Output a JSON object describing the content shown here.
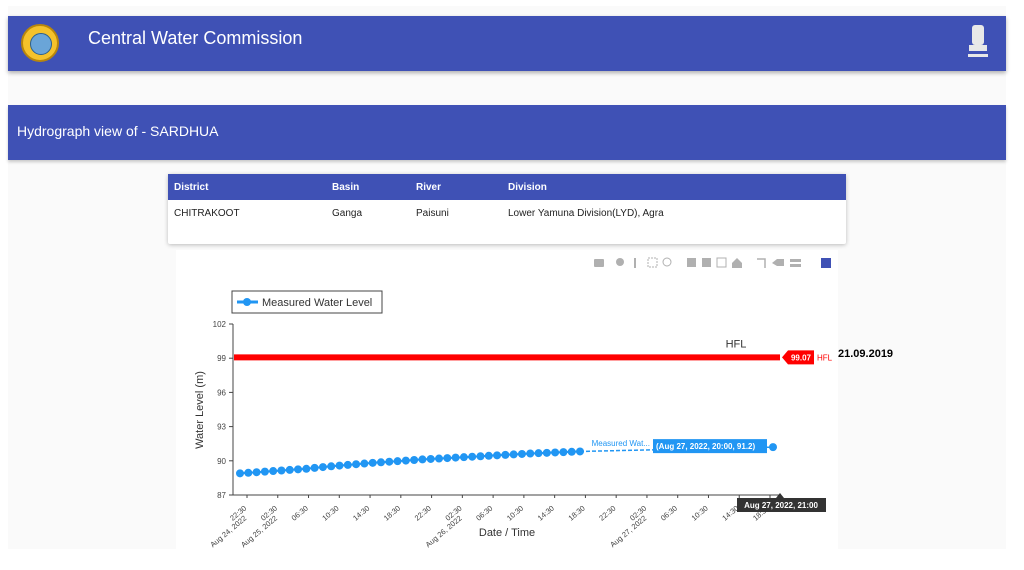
{
  "header": {
    "title": "Central Water Commission"
  },
  "banner": {
    "text": "Hydrograph view of - SARDHUA"
  },
  "station_table": {
    "headers": [
      "District",
      "Basin",
      "River",
      "Division"
    ],
    "row": [
      "CHITRAKOOT",
      "Ganga",
      "Paisuni",
      "Lower Yamuna Division(LYD), Agra"
    ]
  },
  "colors": {
    "primary": "#3f51b5",
    "hfl": "#ff0000",
    "series": "#2196f3"
  },
  "modebar_icons": [
    "camera-icon",
    "zoom-icon",
    "pan-icon",
    "box-select-icon",
    "lasso-icon",
    "zoom-in-icon",
    "zoom-out-icon",
    "autoscale-icon",
    "reset-axes-icon",
    "spike-lines-icon",
    "hover-closest-icon",
    "hover-compare-icon",
    "plotly-logo-icon"
  ],
  "hfl_date": "21.09.2019",
  "chart_data": {
    "type": "line",
    "legend": {
      "position": "top-left",
      "entries": [
        "Measured Water Level"
      ]
    },
    "xlabel": "Date / Time",
    "ylabel": "Water Level (m)",
    "ylim": [
      87,
      102
    ],
    "y_ticks": [
      87,
      90,
      93,
      96,
      99,
      102
    ],
    "x_tick_labels": [
      "22:30\nAug 24, 2022",
      "02:30\nAug 25, 2022",
      "06:30",
      "10:30",
      "14:30",
      "18:30",
      "22:30",
      "02:30\nAug 26, 2022",
      "06:30",
      "10:30",
      "14:30",
      "18:30",
      "22:30",
      "02:30\nAug 27, 2022",
      "06:30",
      "10:30",
      "14:30",
      "18:30"
    ],
    "series": [
      {
        "name": "Measured Water Level",
        "values": [
          88.9,
          88.95,
          89.0,
          89.05,
          89.1,
          89.15,
          89.2,
          89.25,
          89.3,
          89.38,
          89.45,
          89.52,
          89.58,
          89.64,
          89.7,
          89.76,
          89.82,
          89.87,
          89.92,
          89.97,
          90.02,
          90.07,
          90.12,
          90.16,
          90.2,
          90.24,
          90.28,
          90.32,
          90.36,
          90.4,
          90.44,
          90.48,
          90.52,
          90.56,
          90.6,
          90.64,
          90.67,
          90.7,
          90.73,
          90.76,
          90.79,
          90.82,
          91.2
        ]
      },
      {
        "name": "HFL",
        "value": 99.07
      }
    ],
    "annotations": {
      "hfl_label": "HFL",
      "hfl_value_label": "99.07",
      "hfl_tag": "HFL",
      "hover_series_name": "Measured Wat...",
      "hover_value": "(Aug 27, 2022, 20:00, 91.2)",
      "hover_x": "Aug 27, 2022, 21:00"
    }
  }
}
